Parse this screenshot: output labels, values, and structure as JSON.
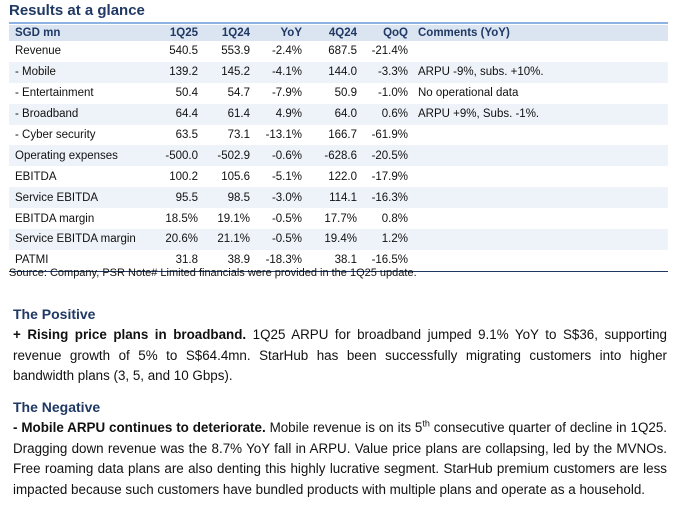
{
  "title": "Results at a glance",
  "table": {
    "headers": [
      "SGD mn",
      "1Q25",
      "1Q24",
      "YoY",
      "4Q24",
      "QoQ",
      "Comments (YoY)"
    ],
    "rows": [
      [
        "Revenue",
        "540.5",
        "553.9",
        "-2.4%",
        "687.5",
        "-21.4%",
        ""
      ],
      [
        "- Mobile",
        "139.2",
        "145.2",
        "-4.1%",
        "144.0",
        "-3.3%",
        "ARPU -9%, subs. +10%."
      ],
      [
        "- Entertainment",
        "50.4",
        "54.7",
        "-7.9%",
        "50.9",
        "-1.0%",
        "No operational data"
      ],
      [
        "- Broadband",
        "64.4",
        "61.4",
        "4.9%",
        "64.0",
        "0.6%",
        "ARPU +9%, Subs. -1%."
      ],
      [
        "- Cyber security",
        "63.5",
        "73.1",
        "-13.1%",
        "166.7",
        "-61.9%",
        ""
      ],
      [
        "Operating expenses",
        "-500.0",
        "-502.9",
        "-0.6%",
        "-628.6",
        "-20.5%",
        ""
      ],
      [
        "EBITDA",
        "100.2",
        "105.6",
        "-5.1%",
        "122.0",
        "-17.9%",
        ""
      ],
      [
        "Service EBITDA",
        "95.5",
        "98.5",
        "-3.0%",
        "114.1",
        "-16.3%",
        ""
      ],
      [
        "EBITDA margin",
        "18.5%",
        "19.1%",
        "-0.5%",
        "17.7%",
        "0.8%",
        ""
      ],
      [
        "Service EBITDA margin",
        "20.6%",
        "21.1%",
        "-0.5%",
        "19.4%",
        "1.2%",
        ""
      ],
      [
        "PATMI",
        "31.8",
        "38.9",
        "-18.3%",
        "38.1",
        "-16.5%",
        ""
      ]
    ]
  },
  "source": "Source: Company, PSR Note# Limited financials were provided in the 1Q25 update.",
  "positive": {
    "heading": "The Positive",
    "lead": "+ Rising price plans in broadband.",
    "body": " 1Q25 ARPU for broadband jumped 9.1% YoY to S$36, supporting revenue growth of 5% to S$64.4mn. StarHub has been successfully migrating customers into higher bandwidth plans (3, 5, and 10 Gbps)."
  },
  "negative": {
    "heading": "The Negative",
    "lead": "- Mobile ARPU continues to deteriorate.",
    "body_a": " Mobile revenue is on its 5",
    "body_sup": "th",
    "body_b": " consecutive quarter of decline in 1Q25. Dragging down revenue was the 8.7% YoY fall in ARPU. Value price plans are collapsing, led by the MVNOs. Free roaming data plans are also denting this highly lucrative segment. StarHub premium customers are less impacted because such customers have bundled products with multiple plans and operate as a household."
  }
}
